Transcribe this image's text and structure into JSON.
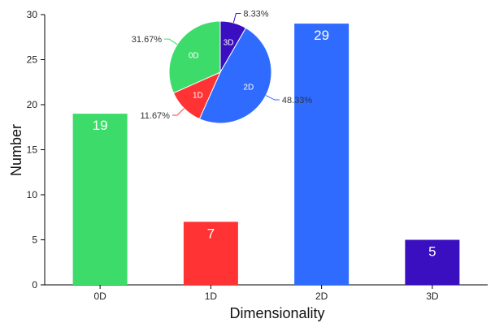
{
  "chart_data": [
    {
      "type": "bar",
      "categories": [
        "0D",
        "1D",
        "2D",
        "3D"
      ],
      "values": [
        19,
        7,
        29,
        5
      ],
      "data_labels": [
        "19",
        "7",
        "29",
        "5"
      ],
      "colors": [
        "#3ddc6a",
        "#ff3333",
        "#2f6bff",
        "#3a0fbf"
      ],
      "xlabel": "Dimensionality",
      "ylabel": "Number",
      "ylim": [
        0,
        30
      ],
      "yticks": [
        0,
        5,
        10,
        15,
        20,
        25,
        30
      ],
      "ytick_labels": [
        "0",
        "5",
        "10",
        "15",
        "20",
        "25",
        "30"
      ],
      "grid": false
    },
    {
      "type": "pie",
      "categories": [
        "0D",
        "1D",
        "2D",
        "3D"
      ],
      "values": [
        31.67,
        11.67,
        48.33,
        8.33
      ],
      "percent_labels": [
        "31.67%",
        "11.67%",
        "48.33%",
        "8.33%"
      ],
      "colors": [
        "#3ddc6a",
        "#ff3333",
        "#2f6bff",
        "#3a0fbf"
      ],
      "placement": "inset top-center"
    }
  ]
}
